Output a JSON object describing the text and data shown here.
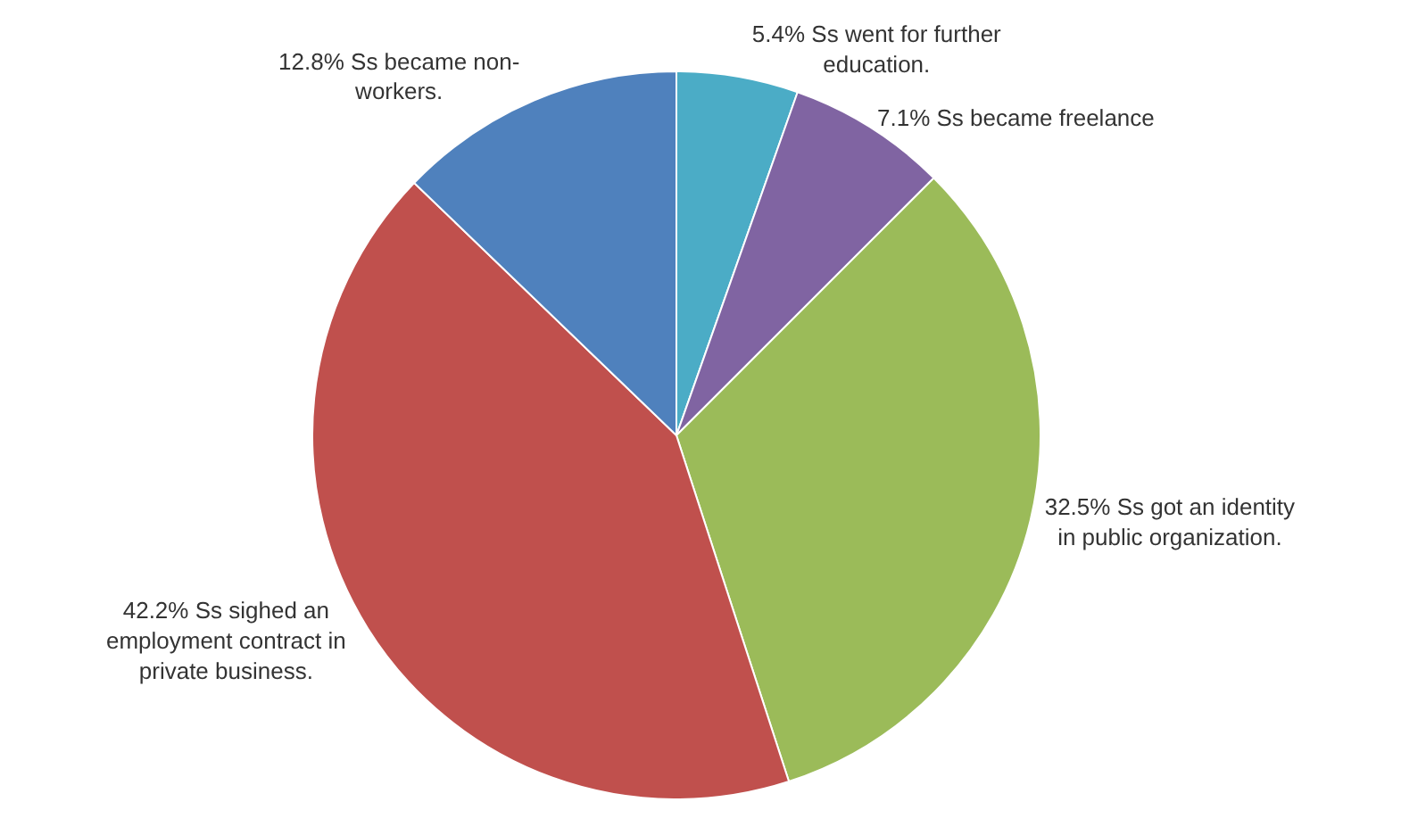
{
  "chart_data": {
    "type": "pie",
    "categories": [
      "5.4% Ss went for further education.",
      "7.1% Ss became freelance",
      "32.5% Ss got an identity in public organization.",
      "42.2% Ss sighed an employment contract in private business.",
      "12.8% Ss became non-workers."
    ],
    "values": [
      5.4,
      7.1,
      32.5,
      42.2,
      12.8
    ],
    "colors": [
      "#4bacc6",
      "#8064a2",
      "#9bbb59",
      "#c0504d",
      "#4f81bd"
    ],
    "legend": false
  }
}
